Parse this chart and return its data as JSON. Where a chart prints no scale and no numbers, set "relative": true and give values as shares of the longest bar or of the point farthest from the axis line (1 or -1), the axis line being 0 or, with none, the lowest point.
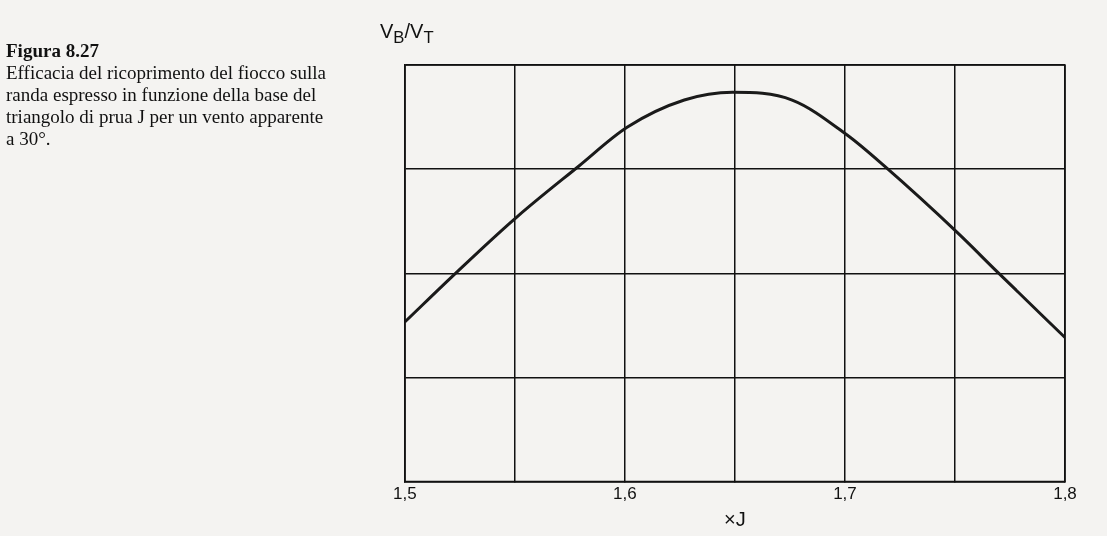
{
  "chart_data": {
    "type": "line",
    "title": "Figura 8.27",
    "subtitle": "Efficacia del ricoprimento del fiocco sulla randa espresso in funzione della base del triangolo di prua J per un vento apparente a 30°.",
    "xlabel": "×J",
    "ylabel": "V$_{B}$/V$_{T}$",
    "relative": true,
    "x": [
      1.5,
      1.524,
      1.551,
      1.579,
      1.601,
      1.627,
      1.649,
      1.676,
      1.701,
      1.718,
      1.751,
      1.769,
      1.8
    ],
    "series": [
      {
        "color": "#1a1a1a",
        "values": [
          0.41,
          0.54,
          0.68,
          0.81,
          0.91,
          0.98,
          1.0,
          0.98,
          0.89,
          0.81,
          0.64,
          0.54,
          0.37
        ]
      }
    ],
    "xlim": [
      1.5,
      1.8
    ],
    "xticks": [
      {
        "value": 1.5,
        "label": "1,5"
      },
      {
        "value": 1.55,
        "label": null
      },
      {
        "value": 1.6,
        "label": "1,6"
      },
      {
        "value": 1.65,
        "label": null
      },
      {
        "value": 1.7,
        "label": "1,7"
      },
      {
        "value": 1.75,
        "label": null
      },
      {
        "value": 1.8,
        "label": "1,8"
      }
    ],
    "grid": true,
    "legend": false,
    "marker": "none",
    "line_style": "solid"
  }
}
